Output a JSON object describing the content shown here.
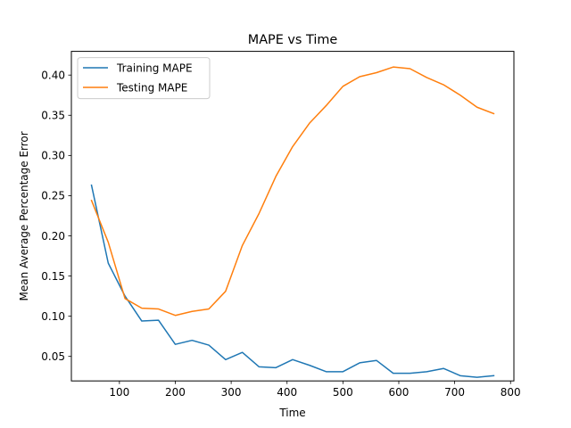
{
  "chart_data": {
    "type": "line",
    "title": "MAPE vs Time",
    "xlabel": "Time",
    "ylabel": "Mean Average Percentage Error",
    "xlim": [
      14,
      806
    ],
    "ylim": [
      0.0195,
      0.4295
    ],
    "xticks": [
      100,
      200,
      300,
      400,
      500,
      600,
      700,
      800
    ],
    "yticks": [
      0.05,
      0.1,
      0.15,
      0.2,
      0.25,
      0.3,
      0.35,
      0.4
    ],
    "xtick_labels": [
      "100",
      "200",
      "300",
      "400",
      "500",
      "600",
      "700",
      "800"
    ],
    "ytick_labels": [
      "0.05",
      "0.10",
      "0.15",
      "0.20",
      "0.25",
      "0.30",
      "0.35",
      "0.40"
    ],
    "grid": false,
    "legend_position": "upper-left",
    "x": [
      50,
      80,
      110,
      140,
      170,
      200,
      230,
      260,
      290,
      320,
      350,
      380,
      410,
      440,
      470,
      500,
      530,
      560,
      590,
      620,
      650,
      680,
      710,
      740,
      770
    ],
    "series": [
      {
        "name": "Training MAPE",
        "color": "#1f77b4",
        "values": [
          0.263,
          0.166,
          0.125,
          0.094,
          0.095,
          0.065,
          0.07,
          0.064,
          0.046,
          0.055,
          0.037,
          0.036,
          0.046,
          0.039,
          0.031,
          0.031,
          0.042,
          0.045,
          0.029,
          0.029,
          0.031,
          0.035,
          0.026,
          0.024,
          0.026
        ]
      },
      {
        "name": "Testing MAPE",
        "color": "#ff7f0e",
        "values": [
          0.244,
          0.192,
          0.122,
          0.11,
          0.109,
          0.101,
          0.106,
          0.109,
          0.131,
          0.188,
          0.228,
          0.274,
          0.311,
          0.34,
          0.362,
          0.386,
          0.398,
          0.403,
          0.41,
          0.408,
          0.397,
          0.388,
          0.375,
          0.36,
          0.352
        ]
      }
    ]
  }
}
